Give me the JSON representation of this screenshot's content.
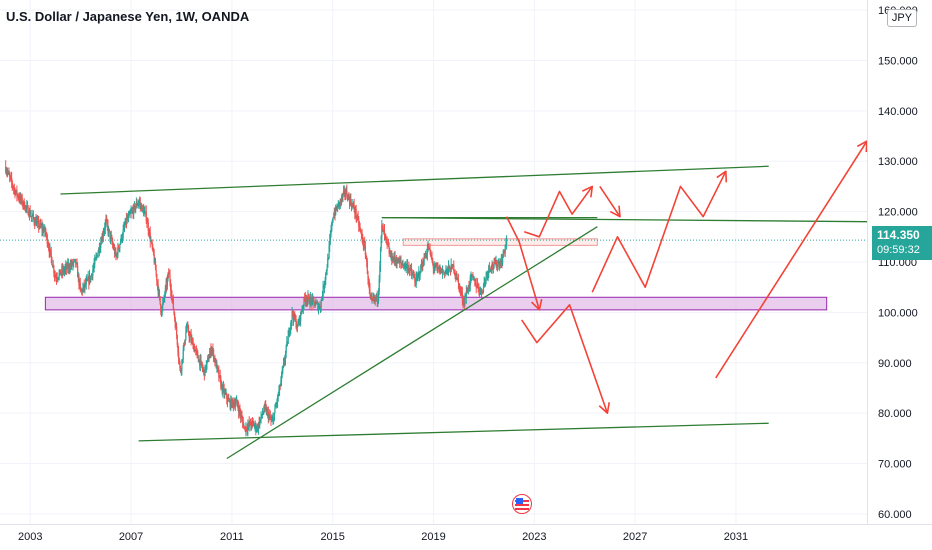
{
  "header": {
    "title": "U.S. Dollar / Japanese Yen, 1W, OANDA",
    "currency": "JPY"
  },
  "price_tag": {
    "price": "114.350",
    "countdown": "09:59:32"
  },
  "colors": {
    "up": "#26a69a",
    "down": "#ef5350",
    "support_line": "#2e7d32",
    "zone_fill": "#e1bee7",
    "zone_border": "#9c27b0",
    "arrows": "#f44336",
    "last_price_line": "#26a69a"
  },
  "chart_data": {
    "type": "candlestick",
    "title": "U.S. Dollar / Japanese Yen, 1W, OANDA",
    "x_ticks": [
      "2003",
      "2007",
      "2011",
      "2015",
      "2019",
      "2023",
      "2027",
      "2031"
    ],
    "y_ticks": [
      "60.000",
      "70.000",
      "80.000",
      "90.000",
      "100.000",
      "110.000",
      "120.000",
      "130.000",
      "140.000",
      "150.000",
      "160.000"
    ],
    "ylim": [
      58,
      162
    ],
    "xlim": [
      2001.8,
      2036.2
    ],
    "last_price": 114.35,
    "grid": true,
    "price_path": [
      [
        2002.0,
        129
      ],
      [
        2002.4,
        124
      ],
      [
        2002.8,
        121
      ],
      [
        2003.2,
        118
      ],
      [
        2003.6,
        116
      ],
      [
        2004.0,
        107
      ],
      [
        2004.5,
        109
      ],
      [
        2004.8,
        110
      ],
      [
        2005.0,
        104
      ],
      [
        2005.4,
        107
      ],
      [
        2005.8,
        114
      ],
      [
        2006.0,
        118
      ],
      [
        2006.4,
        111
      ],
      [
        2006.8,
        118
      ],
      [
        2007.3,
        122
      ],
      [
        2007.6,
        119
      ],
      [
        2007.9,
        111
      ],
      [
        2008.2,
        100
      ],
      [
        2008.5,
        108
      ],
      [
        2008.8,
        96
      ],
      [
        2008.95,
        88
      ],
      [
        2009.2,
        97
      ],
      [
        2009.5,
        93
      ],
      [
        2009.9,
        88
      ],
      [
        2010.2,
        93
      ],
      [
        2010.6,
        85
      ],
      [
        2010.9,
        82
      ],
      [
        2011.2,
        82
      ],
      [
        2011.5,
        77
      ],
      [
        2011.8,
        78
      ],
      [
        2012.0,
        77
      ],
      [
        2012.3,
        81
      ],
      [
        2012.6,
        78
      ],
      [
        2012.9,
        85
      ],
      [
        2013.2,
        94
      ],
      [
        2013.4,
        100
      ],
      [
        2013.6,
        97
      ],
      [
        2013.9,
        103
      ],
      [
        2014.2,
        102
      ],
      [
        2014.5,
        101
      ],
      [
        2014.8,
        110
      ],
      [
        2015.0,
        119
      ],
      [
        2015.5,
        124
      ],
      [
        2015.9,
        120
      ],
      [
        2016.3,
        112
      ],
      [
        2016.5,
        102
      ],
      [
        2016.8,
        103
      ],
      [
        2016.95,
        117
      ],
      [
        2017.3,
        111
      ],
      [
        2017.6,
        110
      ],
      [
        2018.0,
        109
      ],
      [
        2018.3,
        106
      ],
      [
        2018.8,
        113
      ],
      [
        2019.0,
        109
      ],
      [
        2019.4,
        108
      ],
      [
        2019.8,
        109
      ],
      [
        2020.2,
        102
      ],
      [
        2020.5,
        107
      ],
      [
        2020.9,
        104
      ],
      [
        2021.2,
        109
      ],
      [
        2021.7,
        110
      ],
      [
        2021.9,
        114.35
      ]
    ],
    "drawings": {
      "trendlines": [
        {
          "from": [
            2004.2,
            123.5
          ],
          "to": [
            2032.3,
            129
          ]
        },
        {
          "from": [
            2016.95,
            118.8
          ],
          "to": [
            2036.2,
            118
          ]
        },
        {
          "from": [
            2016.95,
            118.8
          ],
          "to": [
            2025.5,
            118.8
          ]
        },
        {
          "from": [
            2010.8,
            71
          ],
          "to": [
            2025.5,
            117
          ]
        },
        {
          "from": [
            2007.3,
            74.5
          ],
          "to": [
            2032.3,
            78
          ]
        }
      ],
      "zones": [
        {
          "price_from": 100.5,
          "price_to": 103.0,
          "x_from": 2003.6,
          "x_to": 2034.6,
          "color": "#e1bee7"
        },
        {
          "price_from": 113.3,
          "price_to": 114.6,
          "x_from": 2017.8,
          "x_to": 2025.5,
          "color": "#fde0dc"
        }
      ],
      "forecast_paths": [
        [
          [
            2021.9,
            119
          ],
          [
            2022.4,
            114
          ],
          [
            2023.2,
            100.5
          ]
        ],
        [
          [
            2022.6,
            116
          ],
          [
            2023.2,
            115
          ],
          [
            2024.0,
            124
          ],
          [
            2024.5,
            119.5
          ],
          [
            2025.3,
            125
          ]
        ],
        [
          [
            2025.6,
            125
          ],
          [
            2026.4,
            119
          ]
        ],
        [
          [
            2025.3,
            104
          ],
          [
            2026.3,
            115
          ],
          [
            2027.4,
            105
          ],
          [
            2028.8,
            125
          ],
          [
            2029.7,
            119
          ],
          [
            2030.6,
            128
          ]
        ],
        [
          [
            2022.5,
            98.5
          ],
          [
            2023.1,
            94
          ],
          [
            2024.4,
            101.5
          ],
          [
            2025.9,
            80
          ]
        ],
        [
          [
            2030.2,
            87
          ],
          [
            2036.2,
            134
          ]
        ]
      ]
    }
  }
}
